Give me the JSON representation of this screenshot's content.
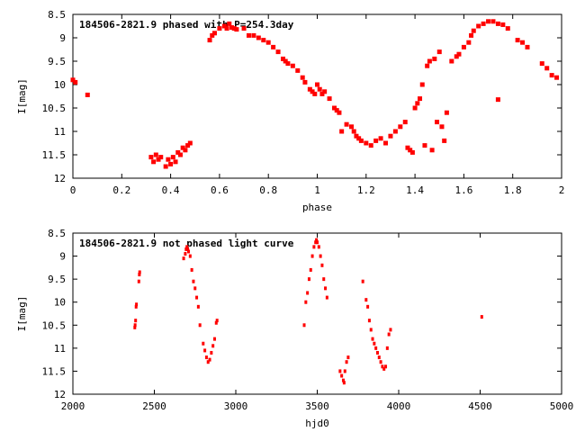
{
  "chart_data": [
    {
      "type": "scatter",
      "title": "184506-2821.9 phased with P=254.3day",
      "xlabel": "phase",
      "ylabel": "I[mag]",
      "xlim": [
        0,
        2
      ],
      "ylim": [
        12,
        8.5
      ],
      "y_inverted": true,
      "x_ticks": [
        "0",
        "0.2",
        "0.4",
        "0.6",
        "0.8",
        "1",
        "1.2",
        "1.4",
        "1.6",
        "1.8",
        "2"
      ],
      "y_ticks": [
        "8.5",
        "9",
        "9.5",
        "10",
        "10.5",
        "11",
        "11.5",
        "12"
      ],
      "marker_color": "#ff0000",
      "grid": false,
      "series": [
        {
          "points": [
            [
              0.0,
              9.9
            ],
            [
              0.01,
              9.95
            ],
            [
              0.06,
              10.22
            ],
            [
              0.32,
              11.55
            ],
            [
              0.33,
              11.65
            ],
            [
              0.34,
              11.5
            ],
            [
              0.35,
              11.6
            ],
            [
              0.36,
              11.55
            ],
            [
              0.38,
              11.75
            ],
            [
              0.39,
              11.6
            ],
            [
              0.4,
              11.7
            ],
            [
              0.41,
              11.55
            ],
            [
              0.42,
              11.65
            ],
            [
              0.43,
              11.45
            ],
            [
              0.44,
              11.5
            ],
            [
              0.45,
              11.35
            ],
            [
              0.46,
              11.4
            ],
            [
              0.47,
              11.3
            ],
            [
              0.48,
              11.25
            ],
            [
              0.56,
              9.05
            ],
            [
              0.57,
              8.95
            ],
            [
              0.58,
              8.9
            ],
            [
              0.6,
              8.8
            ],
            [
              0.62,
              8.75
            ],
            [
              0.63,
              8.8
            ],
            [
              0.64,
              8.7
            ],
            [
              0.65,
              8.78
            ],
            [
              0.66,
              8.8
            ],
            [
              0.67,
              8.82
            ],
            [
              0.7,
              8.8
            ],
            [
              0.72,
              8.95
            ],
            [
              0.74,
              8.95
            ],
            [
              0.76,
              9.0
            ],
            [
              0.78,
              9.05
            ],
            [
              0.8,
              9.1
            ],
            [
              0.82,
              9.2
            ],
            [
              0.84,
              9.3
            ],
            [
              0.86,
              9.45
            ],
            [
              0.87,
              9.5
            ],
            [
              0.88,
              9.55
            ],
            [
              0.9,
              9.6
            ],
            [
              0.92,
              9.7
            ],
            [
              0.94,
              9.85
            ],
            [
              0.95,
              9.95
            ],
            [
              0.97,
              10.1
            ],
            [
              0.98,
              10.15
            ],
            [
              0.99,
              10.2
            ],
            [
              1.0,
              10.0
            ],
            [
              1.01,
              10.1
            ],
            [
              1.02,
              10.2
            ],
            [
              1.03,
              10.15
            ],
            [
              1.05,
              10.3
            ],
            [
              1.07,
              10.5
            ],
            [
              1.08,
              10.55
            ],
            [
              1.09,
              10.6
            ],
            [
              1.1,
              11.0
            ],
            [
              1.12,
              10.85
            ],
            [
              1.14,
              10.9
            ],
            [
              1.15,
              11.0
            ],
            [
              1.16,
              11.1
            ],
            [
              1.17,
              11.15
            ],
            [
              1.18,
              11.2
            ],
            [
              1.2,
              11.25
            ],
            [
              1.22,
              11.3
            ],
            [
              1.24,
              11.2
            ],
            [
              1.26,
              11.15
            ],
            [
              1.28,
              11.25
            ],
            [
              1.3,
              11.1
            ],
            [
              1.32,
              11.0
            ],
            [
              1.34,
              10.9
            ],
            [
              1.36,
              10.8
            ],
            [
              1.37,
              11.35
            ],
            [
              1.38,
              11.4
            ],
            [
              1.39,
              11.45
            ],
            [
              1.4,
              10.5
            ],
            [
              1.41,
              10.4
            ],
            [
              1.42,
              10.3
            ],
            [
              1.43,
              10.0
            ],
            [
              1.44,
              11.3
            ],
            [
              1.45,
              9.6
            ],
            [
              1.46,
              9.5
            ],
            [
              1.47,
              11.4
            ],
            [
              1.48,
              9.45
            ],
            [
              1.49,
              10.8
            ],
            [
              1.5,
              9.3
            ],
            [
              1.51,
              10.9
            ],
            [
              1.52,
              11.2
            ],
            [
              1.53,
              10.6
            ],
            [
              1.55,
              9.5
            ],
            [
              1.57,
              9.4
            ],
            [
              1.58,
              9.35
            ],
            [
              1.6,
              9.2
            ],
            [
              1.62,
              9.1
            ],
            [
              1.63,
              8.95
            ],
            [
              1.64,
              8.85
            ],
            [
              1.66,
              8.75
            ],
            [
              1.68,
              8.7
            ],
            [
              1.7,
              8.65
            ],
            [
              1.72,
              8.65
            ],
            [
              1.74,
              8.7
            ],
            [
              1.74,
              10.32
            ],
            [
              1.76,
              8.72
            ],
            [
              1.78,
              8.8
            ],
            [
              1.82,
              9.05
            ],
            [
              1.84,
              9.1
            ],
            [
              1.86,
              9.2
            ],
            [
              1.92,
              9.55
            ],
            [
              1.94,
              9.65
            ],
            [
              1.96,
              9.8
            ],
            [
              1.98,
              9.85
            ]
          ]
        }
      ]
    },
    {
      "type": "scatter",
      "title": "184506-2821.9 not phased light curve",
      "xlabel": "hjd0",
      "ylabel": "I[mag]",
      "xlim": [
        2000,
        5000
      ],
      "ylim": [
        12,
        8.5
      ],
      "y_inverted": true,
      "x_ticks": [
        "2000",
        "2500",
        "3000",
        "3500",
        "4000",
        "4500",
        "5000"
      ],
      "y_ticks": [
        "8.5",
        "9",
        "9.5",
        "10",
        "10.5",
        "11",
        "11.5",
        "12"
      ],
      "marker_color": "#ff0000",
      "grid": false,
      "series": [
        {
          "points": [
            [
              2380,
              10.55
            ],
            [
              2382,
              10.5
            ],
            [
              2385,
              10.4
            ],
            [
              2388,
              10.1
            ],
            [
              2390,
              10.05
            ],
            [
              2405,
              9.55
            ],
            [
              2408,
              9.4
            ],
            [
              2410,
              9.35
            ],
            [
              2680,
              9.05
            ],
            [
              2690,
              8.95
            ],
            [
              2695,
              8.85
            ],
            [
              2700,
              8.8
            ],
            [
              2705,
              8.85
            ],
            [
              2710,
              8.9
            ],
            [
              2720,
              9.0
            ],
            [
              2730,
              9.3
            ],
            [
              2740,
              9.55
            ],
            [
              2750,
              9.7
            ],
            [
              2760,
              9.9
            ],
            [
              2770,
              10.1
            ],
            [
              2780,
              10.5
            ],
            [
              2800,
              10.9
            ],
            [
              2810,
              11.05
            ],
            [
              2820,
              11.2
            ],
            [
              2830,
              11.3
            ],
            [
              2840,
              11.25
            ],
            [
              2850,
              11.1
            ],
            [
              2860,
              10.95
            ],
            [
              2870,
              10.8
            ],
            [
              2880,
              10.45
            ],
            [
              2885,
              10.4
            ],
            [
              3420,
              10.5
            ],
            [
              3430,
              10.0
            ],
            [
              3440,
              9.8
            ],
            [
              3450,
              9.5
            ],
            [
              3460,
              9.3
            ],
            [
              3470,
              9.0
            ],
            [
              3480,
              8.8
            ],
            [
              3490,
              8.7
            ],
            [
              3495,
              8.65
            ],
            [
              3500,
              8.7
            ],
            [
              3510,
              8.8
            ],
            [
              3520,
              9.0
            ],
            [
              3530,
              9.2
            ],
            [
              3540,
              9.5
            ],
            [
              3550,
              9.7
            ],
            [
              3560,
              9.9
            ],
            [
              3640,
              11.5
            ],
            [
              3650,
              11.6
            ],
            [
              3660,
              11.7
            ],
            [
              3665,
              11.75
            ],
            [
              3670,
              11.5
            ],
            [
              3680,
              11.3
            ],
            [
              3690,
              11.2
            ],
            [
              3780,
              9.55
            ],
            [
              3800,
              9.95
            ],
            [
              3810,
              10.1
            ],
            [
              3820,
              10.4
            ],
            [
              3830,
              10.6
            ],
            [
              3840,
              10.8
            ],
            [
              3850,
              10.9
            ],
            [
              3860,
              11.0
            ],
            [
              3870,
              11.1
            ],
            [
              3880,
              11.2
            ],
            [
              3890,
              11.3
            ],
            [
              3900,
              11.4
            ],
            [
              3910,
              11.45
            ],
            [
              3920,
              11.4
            ],
            [
              3930,
              11.0
            ],
            [
              3940,
              10.7
            ],
            [
              3950,
              10.6
            ],
            [
              4510,
              10.32
            ]
          ]
        }
      ]
    }
  ]
}
